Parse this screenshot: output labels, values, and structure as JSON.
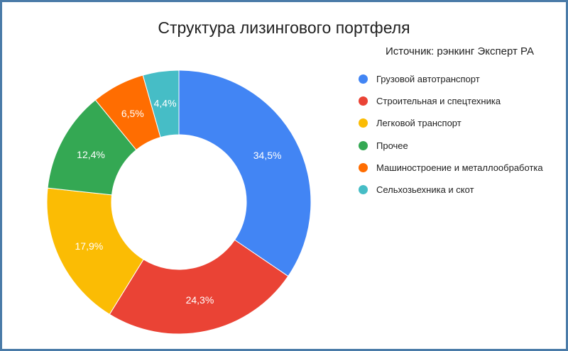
{
  "chart_data": {
    "type": "pie",
    "title": "Структура лизингового портфеля",
    "subtitle": "Источник: рэнкинг Эксперт РА",
    "categories": [
      "Грузовой автотранспорт",
      "Строительная и спецтехника",
      "Легковой транспорт",
      "Прочее",
      "Машиностроение и металлообработка",
      "Сельхозьехника и скот"
    ],
    "values": [
      34.5,
      24.3,
      17.9,
      12.4,
      6.5,
      4.4
    ],
    "value_labels": [
      "34,5%",
      "24,3%",
      "17,9%",
      "12,4%",
      "6,5%",
      "4,4%"
    ],
    "colors": [
      "#4285F4",
      "#EA4335",
      "#FBBC04",
      "#34A853",
      "#FF6D01",
      "#46BDC6"
    ],
    "donut": true,
    "legend_position": "right"
  }
}
